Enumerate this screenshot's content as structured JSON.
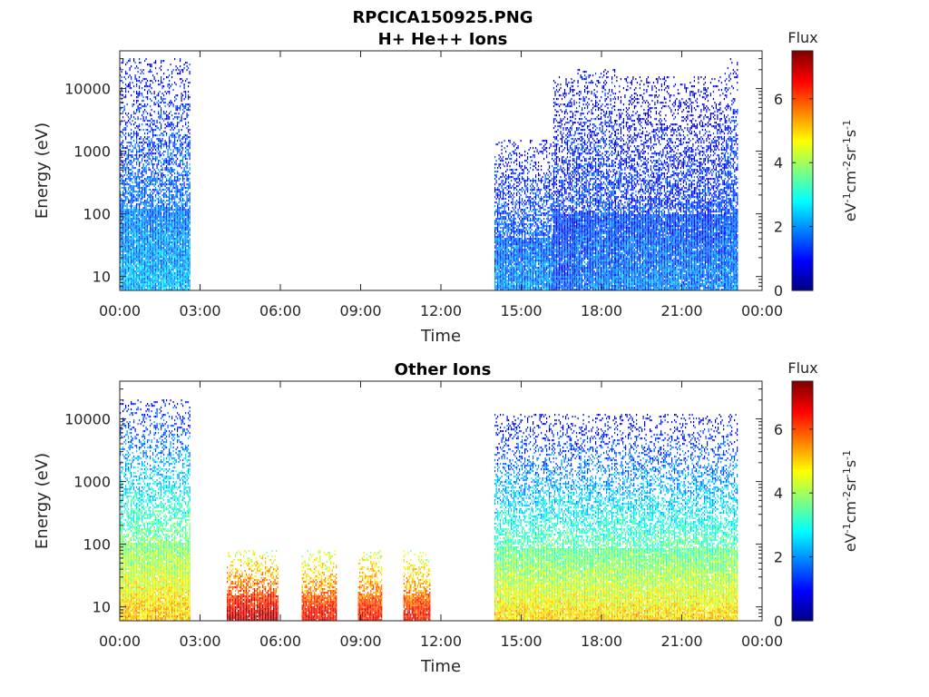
{
  "figure": {
    "title": "RPCICA150925.PNG"
  },
  "colorbar_label": "Flux",
  "colorbar_units": [
    "eV",
    "-1",
    "cm",
    "-2",
    "sr",
    "-1",
    "s",
    "-1"
  ],
  "colormap": [
    "#00007f",
    "#0000ff",
    "#007fff",
    "#00ffff",
    "#7fff7f",
    "#ffff00",
    "#ff7f00",
    "#ff0000",
    "#7f0000"
  ],
  "chart_data": [
    {
      "type": "heatmap",
      "title": "H+ He++ Ions",
      "xlabel": "Time",
      "ylabel": "Energy (eV)",
      "xlim_hours": [
        0,
        24
      ],
      "x_ticks": [
        "00:00",
        "03:00",
        "06:00",
        "09:00",
        "12:00",
        "15:00",
        "18:00",
        "21:00",
        "00:00"
      ],
      "y_scale": "log",
      "ylim": [
        6,
        40000
      ],
      "y_ticks": [
        10,
        100,
        1000,
        10000
      ],
      "y_tick_labels": [
        "10",
        "100",
        "1000",
        "10000"
      ],
      "colorbar": {
        "label": "Flux",
        "range": [
          0,
          7.5
        ],
        "ticks": [
          0,
          2,
          4,
          6
        ],
        "tick_labels": [
          "0",
          "2",
          "4",
          "6"
        ]
      },
      "regions": [
        {
          "t_start": 0.0,
          "t_end": 2.6,
          "e_min": 6,
          "e_max": 30000,
          "flux_low": 2.3,
          "flux_high": 0.9
        },
        {
          "t_start": 14.0,
          "t_end": 16.2,
          "e_min": 6,
          "e_max": 1500,
          "flux_low": 2.0,
          "flux_high": 0.9
        },
        {
          "t_start": 16.2,
          "t_end": 17.0,
          "e_min": 6,
          "e_max": 15000,
          "flux_low": 1.6,
          "flux_high": 0.7
        },
        {
          "t_start": 17.0,
          "t_end": 18.5,
          "e_min": 6,
          "e_max": 20000,
          "flux_low": 1.8,
          "flux_high": 0.8
        },
        {
          "t_start": 18.5,
          "t_end": 22.6,
          "e_min": 6,
          "e_max": 15000,
          "flux_low": 1.9,
          "flux_high": 0.5
        },
        {
          "t_start": 22.6,
          "t_end": 23.1,
          "e_min": 6,
          "e_max": 30000,
          "flux_low": 1.9,
          "flux_high": 0.8
        }
      ]
    },
    {
      "type": "heatmap",
      "title": "Other Ions",
      "xlabel": "Time",
      "ylabel": "Energy (eV)",
      "xlim_hours": [
        0,
        24
      ],
      "x_ticks": [
        "00:00",
        "03:00",
        "06:00",
        "09:00",
        "12:00",
        "15:00",
        "18:00",
        "21:00",
        "00:00"
      ],
      "y_scale": "log",
      "ylim": [
        6,
        40000
      ],
      "y_ticks": [
        10,
        100,
        1000,
        10000
      ],
      "y_tick_labels": [
        "10",
        "100",
        "1000",
        "10000"
      ],
      "colorbar": {
        "label": "Flux",
        "range": [
          0,
          7.5
        ],
        "ticks": [
          0,
          2,
          4,
          6
        ],
        "tick_labels": [
          "0",
          "2",
          "4",
          "6"
        ]
      },
      "regions": [
        {
          "t_start": 0.0,
          "t_end": 2.6,
          "e_min": 6,
          "e_max": 20000,
          "flux_low": 5.2,
          "flux_high": 1.0
        },
        {
          "t_start": 4.0,
          "t_end": 5.9,
          "e_min": 6,
          "e_max": 80,
          "flux_low": 7.2,
          "flux_high": 4.2
        },
        {
          "t_start": 6.8,
          "t_end": 8.1,
          "e_min": 6,
          "e_max": 80,
          "flux_low": 6.8,
          "flux_high": 4.0
        },
        {
          "t_start": 8.9,
          "t_end": 9.8,
          "e_min": 6,
          "e_max": 80,
          "flux_low": 6.6,
          "flux_high": 4.2
        },
        {
          "t_start": 10.6,
          "t_end": 11.6,
          "e_min": 6,
          "e_max": 80,
          "flux_low": 6.6,
          "flux_high": 4.0
        },
        {
          "t_start": 14.0,
          "t_end": 23.1,
          "e_min": 6,
          "e_max": 12000,
          "flux_low": 5.0,
          "flux_high": 0.7
        }
      ]
    }
  ]
}
